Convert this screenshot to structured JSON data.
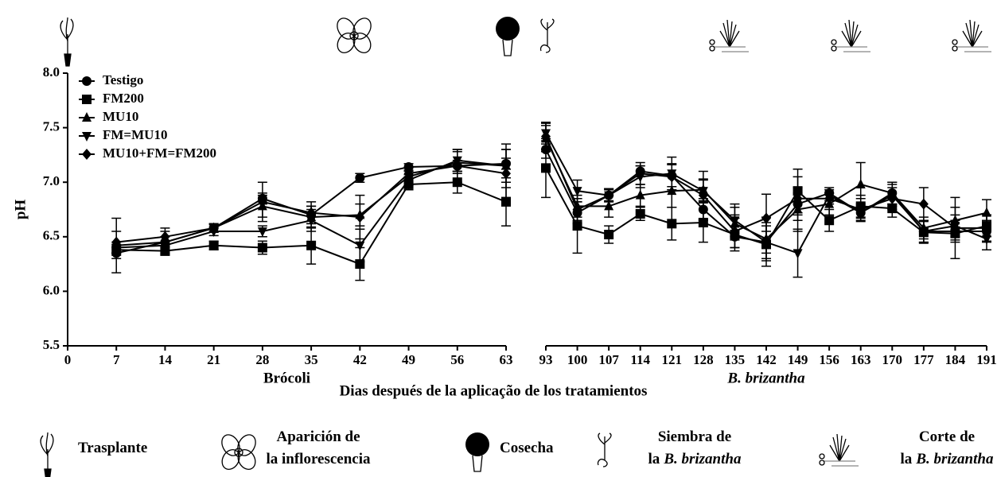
{
  "chart_data": [
    {
      "type": "line",
      "xlabel": "Brócoli",
      "ylabel": "pH",
      "x": [
        7,
        14,
        21,
        28,
        35,
        42,
        49,
        56,
        63
      ],
      "xlim": [
        0,
        63
      ],
      "xticks": [
        0,
        7,
        14,
        21,
        28,
        35,
        42,
        49,
        56,
        63
      ],
      "ylim": [
        5.5,
        8.0
      ],
      "yticks": [
        5.5,
        {
          "value": 6.0,
          "label": "6.0"
        },
        6.5,
        {
          "value": 7.0,
          "label": "7.0"
        },
        7.5,
        {
          "value": 8.0,
          "label": "8.0"
        }
      ],
      "legend": "upper left",
      "series": [
        {
          "name": "Testigo",
          "marker": "circle",
          "color": "#000000",
          "values": [
            6.35,
            6.45,
            6.58,
            6.85,
            6.7,
            7.04,
            7.14,
            7.15,
            7.17
          ],
          "errors": [
            0.05,
            0.05,
            0.03,
            0.05,
            0.08,
            0.04,
            0.03,
            0.05,
            0.05
          ]
        },
        {
          "name": "FM200",
          "marker": "square",
          "color": "#000000",
          "values": [
            6.38,
            6.37,
            6.42,
            6.4,
            6.42,
            6.25,
            6.98,
            7.0,
            6.82
          ],
          "errors": [
            0.05,
            0.04,
            0.04,
            0.06,
            0.17,
            0.15,
            0.05,
            0.1,
            0.22
          ]
        },
        {
          "name": "MU10",
          "marker": "triangle-up",
          "color": "#000000",
          "values": [
            6.42,
            6.45,
            6.58,
            6.78,
            6.68,
            6.7,
            7.05,
            7.18,
            7.15
          ],
          "errors": [
            0.25,
            0.1,
            0.04,
            0.1,
            0.1,
            0.1,
            0.05,
            0.1,
            0.2
          ]
        },
        {
          "name": "FM=MU10",
          "marker": "triangle-down",
          "color": "#000000",
          "values": [
            6.4,
            6.42,
            6.55,
            6.55,
            6.65,
            6.42,
            7.02,
            7.2,
            7.15
          ],
          "errors": [
            0.05,
            0.08,
            0.04,
            0.05,
            0.1,
            0.15,
            0.05,
            0.1,
            0.15
          ]
        },
        {
          "name": "MU10+FM=FM200",
          "marker": "diamond",
          "color": "#000000",
          "values": [
            6.45,
            6.5,
            6.58,
            6.82,
            6.72,
            6.68,
            7.08,
            7.15,
            7.08
          ],
          "errors": [
            0.1,
            0.08,
            0.04,
            0.18,
            0.1,
            0.2,
            0.05,
            0.15,
            0.22
          ]
        }
      ]
    },
    {
      "type": "line",
      "xlabel": "B. brizantha",
      "x": [
        93,
        100,
        107,
        114,
        121,
        128,
        135,
        142,
        149,
        156,
        163,
        170,
        177,
        184,
        191
      ],
      "xlim": [
        93,
        191
      ],
      "xticks": [
        93,
        100,
        107,
        114,
        121,
        128,
        135,
        142,
        149,
        156,
        163,
        170,
        177,
        184,
        191
      ],
      "ylim": [
        5.5,
        8.0
      ],
      "series": [
        {
          "marker": "circle",
          "color": "#000000",
          "values": [
            7.3,
            6.72,
            6.88,
            7.1,
            7.06,
            6.75,
            6.5,
            6.45,
            6.8,
            6.9,
            6.72,
            6.9,
            6.55,
            6.55,
            6.55
          ],
          "errors": [
            0.08,
            0.1,
            0.05,
            0.05,
            0.1,
            0.1,
            0.1,
            0.1,
            0.1,
            0.05,
            0.05,
            0.1,
            0.1,
            0.1,
            0.1
          ]
        },
        {
          "marker": "square",
          "color": "#000000",
          "values": [
            7.13,
            6.6,
            6.52,
            6.71,
            6.62,
            6.63,
            6.52,
            6.43,
            6.92,
            6.65,
            6.78,
            6.76,
            6.54,
            6.53,
            6.6
          ],
          "errors": [
            0.27,
            0.25,
            0.08,
            0.06,
            0.15,
            0.18,
            0.15,
            0.2,
            0.2,
            0.1,
            0.1,
            0.08,
            0.1,
            0.06,
            0.1
          ]
        },
        {
          "marker": "triangle-up",
          "color": "#000000",
          "values": [
            7.4,
            6.78,
            6.78,
            6.88,
            6.92,
            6.93,
            6.62,
            6.48,
            6.75,
            6.8,
            6.98,
            6.9,
            6.58,
            6.65,
            6.72
          ],
          "errors": [
            0.12,
            0.1,
            0.1,
            0.1,
            0.15,
            0.1,
            0.15,
            0.2,
            0.2,
            0.1,
            0.2,
            0.1,
            0.1,
            0.12,
            0.12
          ]
        },
        {
          "marker": "triangle-down",
          "color": "#000000",
          "values": [
            7.45,
            6.92,
            6.88,
            7.05,
            7.08,
            6.92,
            6.65,
            6.45,
            6.35,
            6.88,
            6.72,
            6.88,
            6.55,
            6.6,
            6.48
          ],
          "errors": [
            0.1,
            0.1,
            0.06,
            0.1,
            0.15,
            0.1,
            0.15,
            0.15,
            0.22,
            0.05,
            0.08,
            0.1,
            0.1,
            0.1,
            0.1
          ]
        },
        {
          "marker": "diamond",
          "color": "#000000",
          "values": [
            7.42,
            6.75,
            6.88,
            7.08,
            7.05,
            6.88,
            6.55,
            6.67,
            6.85,
            6.85,
            6.75,
            6.85,
            6.8,
            6.58,
            6.58
          ],
          "errors": [
            0.12,
            0.1,
            0.06,
            0.1,
            0.12,
            0.22,
            0.15,
            0.22,
            0.2,
            0.05,
            0.1,
            0.1,
            0.15,
            0.28,
            0.12
          ]
        }
      ]
    }
  ],
  "shared_xlabel": "Dias después de la aplicação de los tratamientos",
  "stages": [
    {
      "lines": [
        [
          "Trasplante"
        ]
      ]
    },
    {
      "lines": [
        [
          "Aparición de"
        ],
        [
          "la inflorescencia"
        ]
      ]
    },
    {
      "lines": [
        [
          "Cosecha"
        ]
      ]
    },
    {
      "lines": [
        [
          "Siembra de"
        ],
        [
          "la",
          "B. brizantha"
        ]
      ]
    },
    {
      "lines": [
        [
          "Corte de"
        ],
        [
          "la",
          "B. brizantha"
        ]
      ]
    }
  ]
}
